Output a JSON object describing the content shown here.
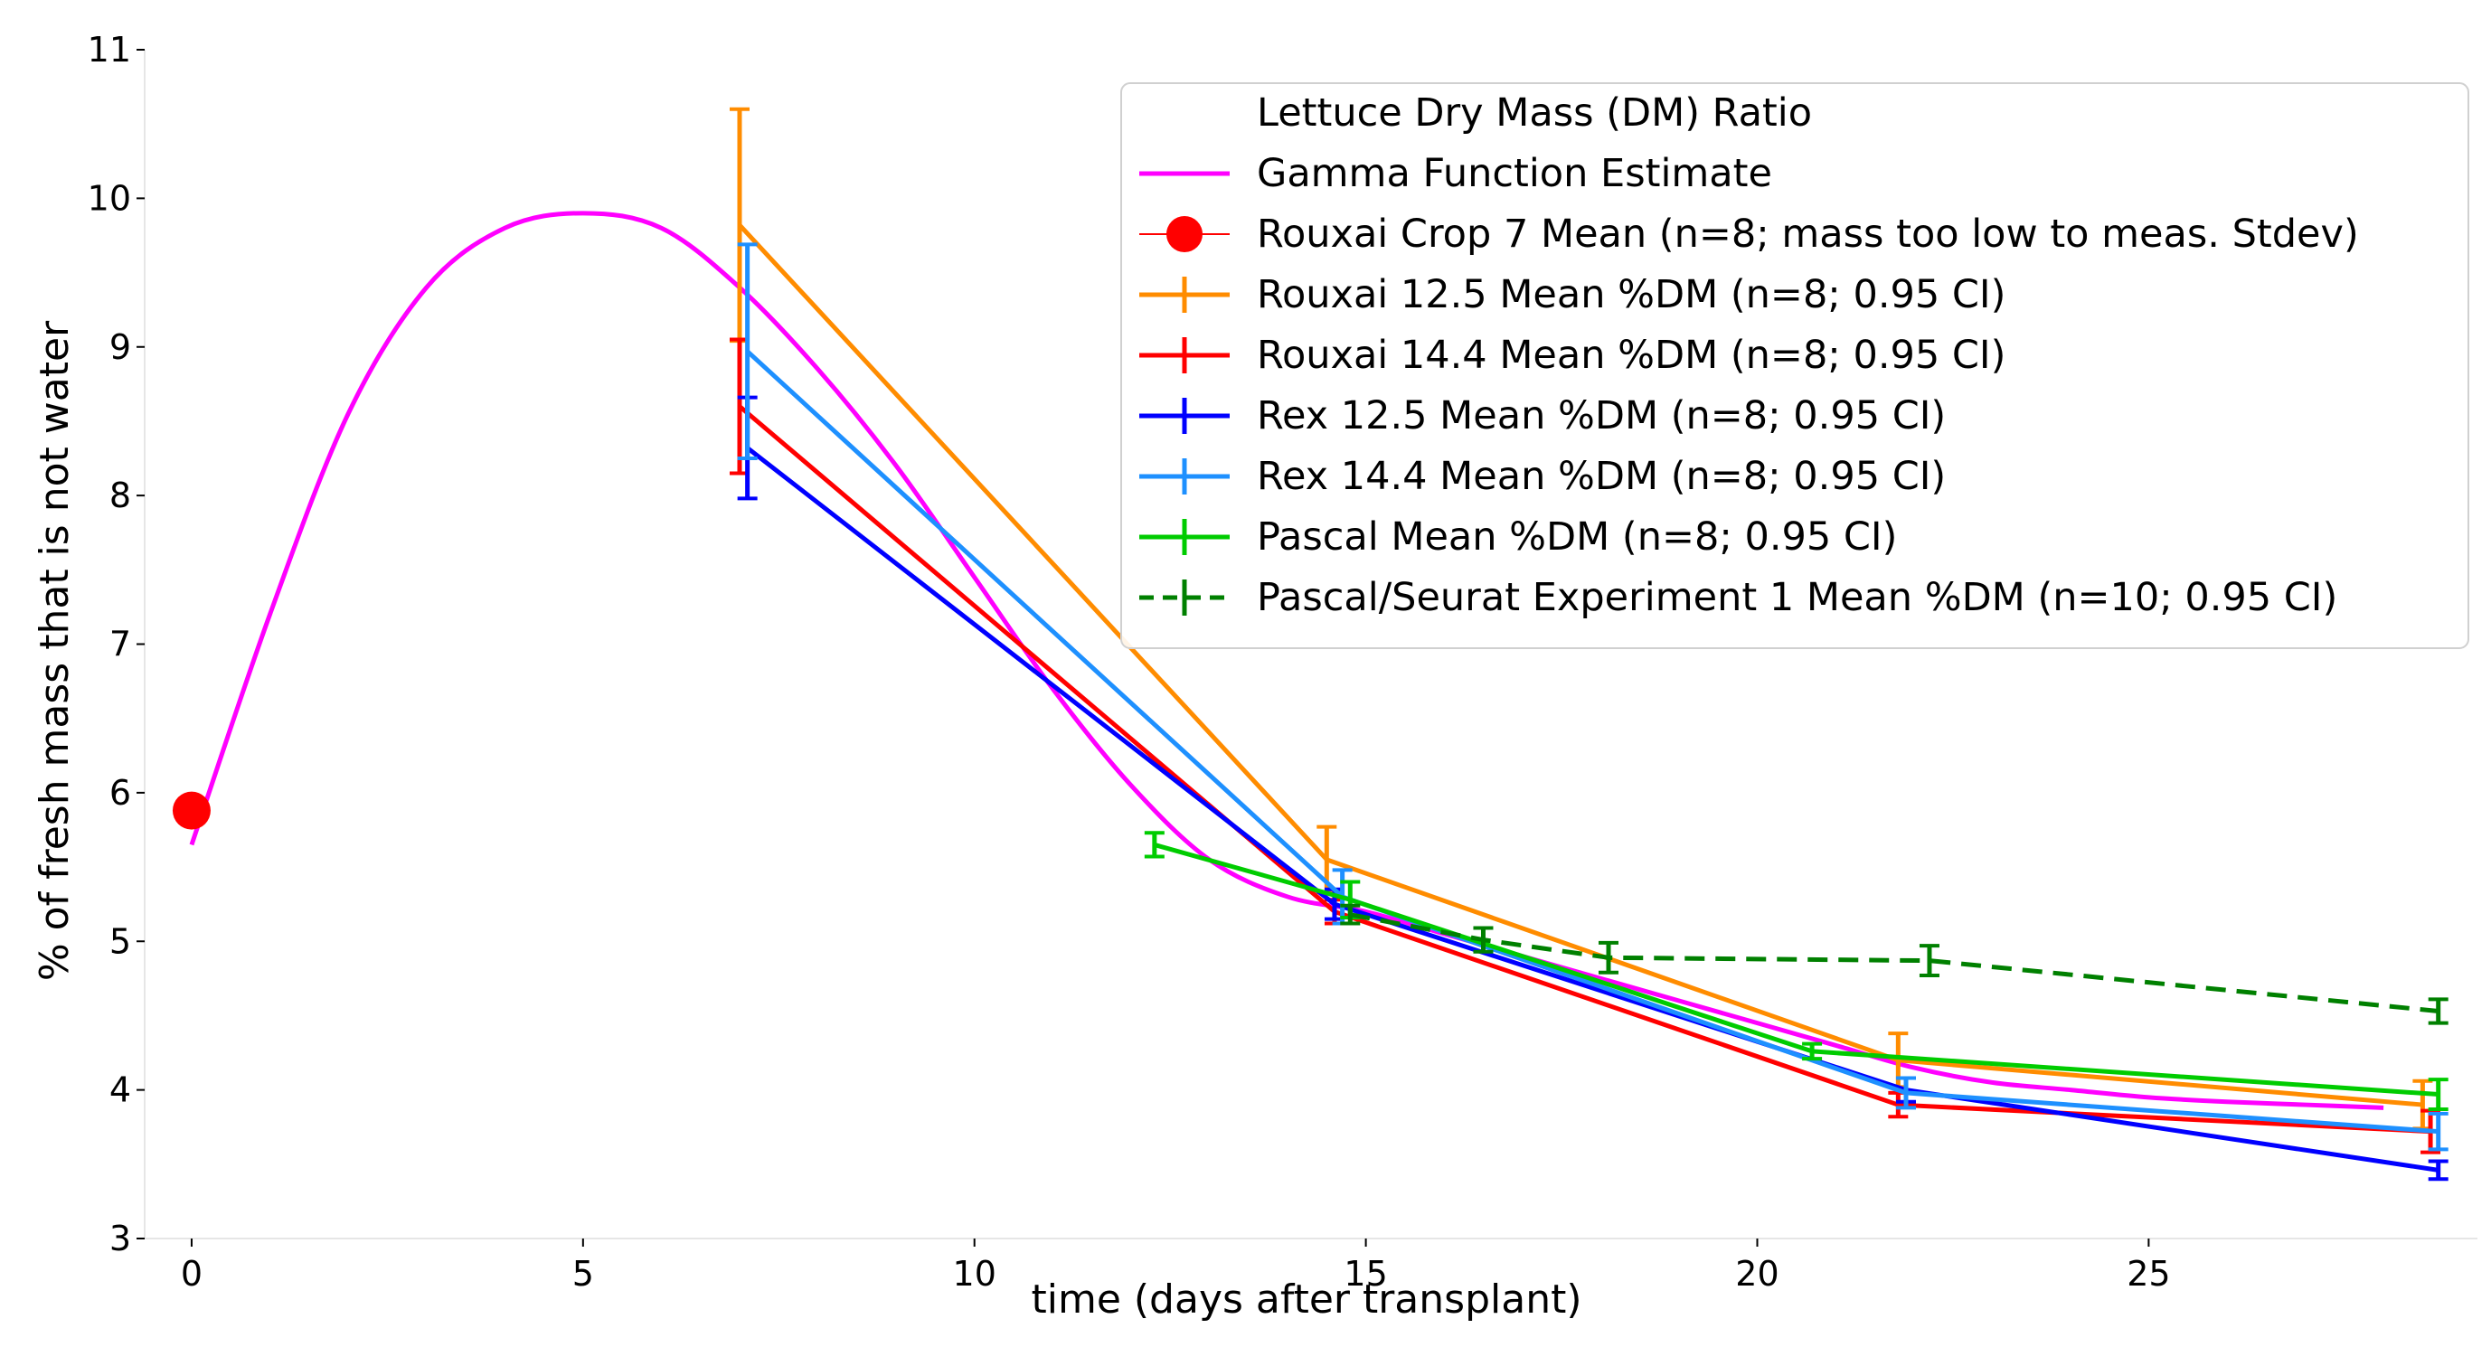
{
  "chart_data": {
    "type": "line",
    "xlabel": "time (days after transplant)",
    "ylabel": "% of fresh mass that is not water",
    "xlim": [
      -0.6,
      29.2
    ],
    "ylim": [
      3,
      11
    ],
    "x_ticks": [
      0,
      5,
      10,
      15,
      20,
      25
    ],
    "y_ticks": [
      3,
      4,
      5,
      6,
      7,
      8,
      9,
      10,
      11
    ],
    "grid": false,
    "legend_position": "top-right",
    "legend_title": "Lettuce Dry Mass (DM) Ratio",
    "series": [
      {
        "name": "Gamma Function Estimate",
        "color": "#ff00ff",
        "kind": "curve",
        "x": [
          0,
          1,
          2,
          3,
          4,
          5,
          6,
          7,
          8,
          9,
          10,
          11,
          12,
          13,
          14,
          15,
          16,
          17,
          18,
          19,
          20,
          21,
          22,
          23,
          24,
          25,
          26,
          27,
          28
        ],
        "y": [
          5.65,
          7.2,
          8.55,
          9.4,
          9.8,
          9.9,
          9.8,
          9.4,
          8.85,
          8.2,
          7.45,
          6.7,
          6.05,
          5.55,
          5.3,
          5.2,
          5.05,
          4.9,
          4.75,
          4.6,
          4.45,
          4.3,
          4.15,
          4.05,
          4.0,
          3.95,
          3.92,
          3.9,
          3.88
        ]
      },
      {
        "name": "Rouxai Crop 7 Mean (n=8; mass too low to meas. Stdev)",
        "color": "#ff0000",
        "kind": "marker",
        "x": [
          0
        ],
        "y": [
          5.88
        ]
      },
      {
        "name": "Rouxai 12.5 Mean %DM (n=8; 0.95 CI)",
        "color": "#ff8c00",
        "kind": "errorbar",
        "x": [
          7.0,
          14.5,
          21.8,
          28.5
        ],
        "y": [
          9.82,
          5.55,
          4.2,
          3.9
        ],
        "err": [
          0.78,
          0.22,
          0.18,
          0.16
        ]
      },
      {
        "name": "Rouxai 14.4 Mean %DM (n=8; 0.95 CI)",
        "color": "#ff0000",
        "kind": "errorbar",
        "x": [
          7.0,
          14.6,
          21.8,
          28.6
        ],
        "y": [
          8.6,
          5.2,
          3.9,
          3.72
        ],
        "err": [
          0.45,
          0.08,
          0.08,
          0.14
        ]
      },
      {
        "name": "Rex 12.5 Mean %DM (n=8; 0.95 CI)",
        "color": "#0000ff",
        "kind": "errorbar",
        "x": [
          7.1,
          14.6,
          21.9,
          28.7
        ],
        "y": [
          8.32,
          5.25,
          4.0,
          3.46
        ],
        "err": [
          0.34,
          0.1,
          0.08,
          0.06
        ]
      },
      {
        "name": "Rex 14.4 Mean %DM (n=8; 0.95 CI)",
        "color": "#1e90ff",
        "kind": "errorbar",
        "x": [
          7.1,
          14.7,
          21.9,
          28.7
        ],
        "y": [
          8.97,
          5.3,
          3.98,
          3.72
        ],
        "err": [
          0.72,
          0.18,
          0.1,
          0.12
        ]
      },
      {
        "name": "Pascal Mean %DM (n=8; 0.95 CI)",
        "color": "#00cc00",
        "kind": "errorbar",
        "x": [
          12.3,
          14.8,
          20.7,
          28.7
        ],
        "y": [
          5.65,
          5.28,
          4.26,
          3.97
        ],
        "err": [
          0.08,
          0.12,
          0.05,
          0.1
        ]
      },
      {
        "name": "Pascal/Seurat Experiment 1 Mean %DM (n=10; 0.95 CI)",
        "color": "#008000",
        "kind": "errorbar",
        "dashed": true,
        "x": [
          14.8,
          16.5,
          18.1,
          22.2,
          28.7
        ],
        "y": [
          5.18,
          5.01,
          4.89,
          4.87,
          4.53
        ],
        "err": [
          0.06,
          0.08,
          0.1,
          0.1,
          0.08
        ]
      }
    ]
  }
}
